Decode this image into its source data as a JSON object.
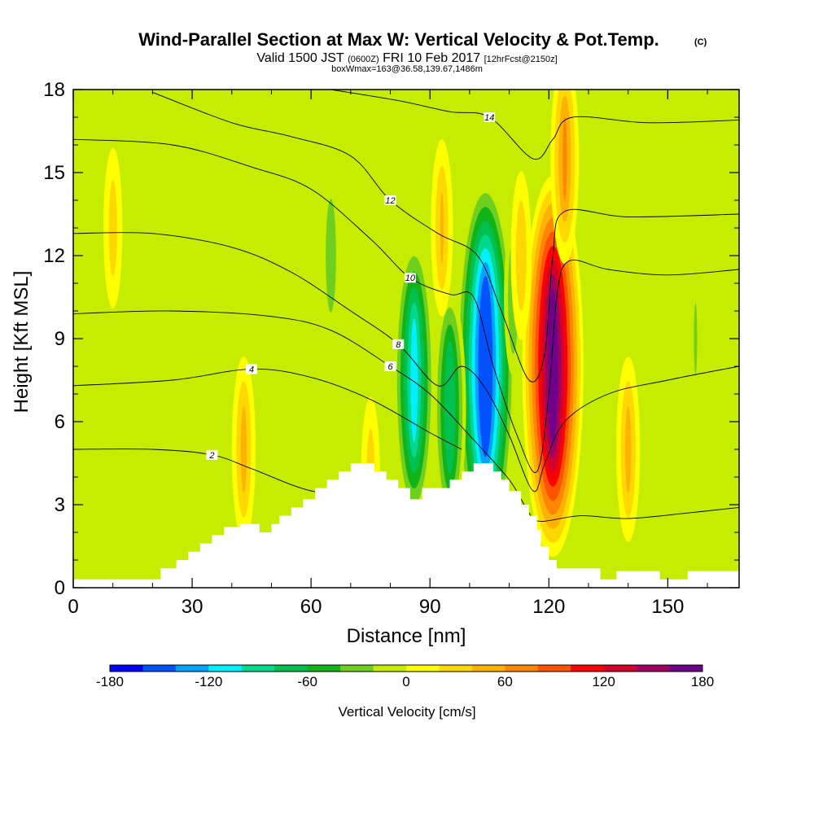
{
  "header": {
    "title": "Wind-Parallel Section at Max W: Vertical Velocity & Pot.Temp.",
    "title_mark": "(C)",
    "valid_prefix": "Valid 1500 JST",
    "valid_utc": "(0600Z)",
    "valid_date": "FRI 10 Feb 2017",
    "forecast": "[12hrFcst@2150z]",
    "box_info": "boxWmax=163@36.58,139.67,1486m"
  },
  "chart_data": {
    "type": "heatmap",
    "xlabel": "Distance [nm]",
    "ylabel": "Height [Kft MSL]",
    "xlim": [
      0,
      168
    ],
    "ylim": [
      0,
      18
    ],
    "x_ticks": [
      "0",
      "30",
      "60",
      "90",
      "120",
      "150"
    ],
    "y_ticks": [
      "0",
      "3",
      "6",
      "9",
      "12",
      "15",
      "18"
    ],
    "colorbar": {
      "label": "Vertical Velocity [cm/s]",
      "min": -180,
      "max": 180,
      "step": 20,
      "ticks": [
        "-180",
        "-120",
        "-60",
        "0",
        "60",
        "120",
        "180"
      ],
      "colors": [
        "#0000ff",
        "#0052ff",
        "#00a4ff",
        "#00f0ff",
        "#00d98d",
        "#00c050",
        "#12b318",
        "#6fcf1e",
        "#c6ec00",
        "#ffff00",
        "#ffd800",
        "#ffb300",
        "#ff8600",
        "#ff5300",
        "#ff0000",
        "#d3002c",
        "#a20061",
        "#6e008c"
      ]
    },
    "terrain": [
      [
        0,
        0.3
      ],
      [
        22,
        0.3
      ],
      [
        22,
        0.7
      ],
      [
        26,
        0.7
      ],
      [
        26,
        1.0
      ],
      [
        29,
        1.0
      ],
      [
        29,
        1.3
      ],
      [
        32,
        1.3
      ],
      [
        32,
        1.6
      ],
      [
        35,
        1.6
      ],
      [
        35,
        1.9
      ],
      [
        38,
        1.9
      ],
      [
        38,
        2.2
      ],
      [
        42,
        2.2
      ],
      [
        42,
        2.3
      ],
      [
        47,
        2.3
      ],
      [
        47,
        2.0
      ],
      [
        50,
        2.0
      ],
      [
        50,
        2.3
      ],
      [
        52,
        2.3
      ],
      [
        52,
        2.6
      ],
      [
        55,
        2.6
      ],
      [
        55,
        2.9
      ],
      [
        58,
        2.9
      ],
      [
        58,
        3.2
      ],
      [
        61,
        3.2
      ],
      [
        61,
        3.6
      ],
      [
        64,
        3.6
      ],
      [
        64,
        3.9
      ],
      [
        67,
        3.9
      ],
      [
        67,
        4.2
      ],
      [
        70,
        4.2
      ],
      [
        70,
        4.5
      ],
      [
        76,
        4.5
      ],
      [
        76,
        4.2
      ],
      [
        79,
        4.2
      ],
      [
        79,
        3.9
      ],
      [
        82,
        3.9
      ],
      [
        82,
        3.6
      ],
      [
        85,
        3.6
      ],
      [
        85,
        3.2
      ],
      [
        88,
        3.2
      ],
      [
        88,
        3.6
      ],
      [
        95,
        3.6
      ],
      [
        95,
        3.9
      ],
      [
        98,
        3.9
      ],
      [
        98,
        4.2
      ],
      [
        101,
        4.2
      ],
      [
        101,
        4.5
      ],
      [
        106,
        4.5
      ],
      [
        106,
        4.2
      ],
      [
        108,
        4.2
      ],
      [
        108,
        3.9
      ],
      [
        110,
        3.9
      ],
      [
        110,
        3.5
      ],
      [
        113,
        3.5
      ],
      [
        113,
        3.0
      ],
      [
        115,
        3.0
      ],
      [
        115,
        2.6
      ],
      [
        117,
        2.6
      ],
      [
        117,
        2.1
      ],
      [
        118,
        2.1
      ],
      [
        118,
        1.5
      ],
      [
        120,
        1.5
      ],
      [
        120,
        1.0
      ],
      [
        122,
        1.0
      ],
      [
        122,
        0.7
      ],
      [
        133,
        0.7
      ],
      [
        133,
        0.3
      ],
      [
        137,
        0.3
      ],
      [
        137,
        0.6
      ],
      [
        148,
        0.6
      ],
      [
        148,
        0.3
      ],
      [
        155,
        0.3
      ],
      [
        155,
        0.6
      ],
      [
        168,
        0.6
      ]
    ],
    "velocity_features": [
      {
        "x": 121,
        "y": 8.0,
        "peak": 163
      },
      {
        "x": 104,
        "y": 8.0,
        "peak": -175
      },
      {
        "x": 86,
        "y": 7.5,
        "peak": -120
      },
      {
        "x": 95,
        "y": 6.5,
        "peak": -95
      },
      {
        "x": 111,
        "y": 10.5,
        "peak": -55
      },
      {
        "x": 65,
        "y": 12.0,
        "peak": -55
      },
      {
        "x": 93,
        "y": 13.0,
        "peak": 40
      },
      {
        "x": 113,
        "y": 12.0,
        "peak": 35
      },
      {
        "x": 43,
        "y": 5.0,
        "peak": 45
      },
      {
        "x": 75,
        "y": 4.0,
        "peak": 30
      },
      {
        "x": 140,
        "y": 5.0,
        "peak": 45
      },
      {
        "x": 124,
        "y": 15.5,
        "peak": 60
      },
      {
        "x": 133,
        "y": 13.5,
        "peak": -35
      },
      {
        "x": 157,
        "y": 9.0,
        "peak": -40
      },
      {
        "x": 10,
        "y": 13.0,
        "peak": 30
      }
    ],
    "theta_contours": [
      {
        "label": "2",
        "points": [
          [
            0,
            5.0
          ],
          [
            20,
            5.0
          ],
          [
            35,
            4.8
          ],
          [
            45,
            4.3
          ],
          [
            60,
            3.5
          ],
          [
            75,
            3.3
          ]
        ]
      },
      {
        "label": "4",
        "points": [
          [
            0,
            7.3
          ],
          [
            25,
            7.5
          ],
          [
            45,
            7.9
          ],
          [
            60,
            7.6
          ],
          [
            75,
            6.8
          ],
          [
            90,
            5.6
          ],
          [
            98,
            5.0
          ]
        ]
      },
      {
        "label": "6",
        "points": [
          [
            0,
            9.9
          ],
          [
            25,
            10.0
          ],
          [
            50,
            9.8
          ],
          [
            65,
            9.3
          ],
          [
            80,
            8.0
          ],
          [
            90,
            7.0
          ],
          [
            100,
            5.5
          ],
          [
            110,
            3.9
          ],
          [
            115,
            2.7
          ],
          [
            118,
            2.4
          ],
          [
            128,
            2.6
          ],
          [
            140,
            2.5
          ],
          [
            155,
            2.7
          ],
          [
            168,
            2.9
          ]
        ]
      },
      {
        "label": "8",
        "points": [
          [
            0,
            12.8
          ],
          [
            20,
            12.8
          ],
          [
            40,
            12.3
          ],
          [
            55,
            11.4
          ],
          [
            70,
            10.0
          ],
          [
            82,
            8.8
          ],
          [
            92,
            7.3
          ],
          [
            98,
            8.0
          ],
          [
            104,
            7.2
          ],
          [
            110,
            5.5
          ],
          [
            116,
            3.5
          ],
          [
            119,
            4.5
          ],
          [
            124,
            6.0
          ],
          [
            135,
            7.0
          ],
          [
            150,
            7.5
          ],
          [
            168,
            8.0
          ]
        ]
      },
      {
        "label": "10",
        "points": [
          [
            0,
            16.2
          ],
          [
            25,
            16.0
          ],
          [
            45,
            15.2
          ],
          [
            60,
            14.4
          ],
          [
            75,
            12.6
          ],
          [
            85,
            11.2
          ],
          [
            95,
            10.6
          ],
          [
            101,
            10.5
          ],
          [
            106,
            8.0
          ],
          [
            112,
            5.5
          ],
          [
            117,
            4.2
          ],
          [
            120,
            7.0
          ],
          [
            122,
            10.5
          ],
          [
            125,
            11.8
          ],
          [
            135,
            11.5
          ],
          [
            150,
            11.3
          ],
          [
            168,
            11.5
          ]
        ]
      },
      {
        "label": "12",
        "points": [
          [
            20,
            17.9
          ],
          [
            40,
            16.8
          ],
          [
            55,
            16.3
          ],
          [
            70,
            15.6
          ],
          [
            80,
            14.0
          ],
          [
            92,
            12.8
          ],
          [
            102,
            12.0
          ],
          [
            108,
            10.0
          ],
          [
            115,
            7.5
          ],
          [
            119,
            8.5
          ],
          [
            121,
            12.0
          ],
          [
            124,
            13.6
          ],
          [
            140,
            13.4
          ],
          [
            168,
            13.5
          ]
        ]
      },
      {
        "label": "14",
        "points": [
          [
            65,
            18.0
          ],
          [
            82,
            17.6
          ],
          [
            95,
            17.2
          ],
          [
            105,
            17.0
          ],
          [
            116,
            15.5
          ],
          [
            121,
            16.2
          ],
          [
            126,
            17.0
          ],
          [
            145,
            16.8
          ],
          [
            168,
            16.9
          ]
        ]
      }
    ]
  }
}
